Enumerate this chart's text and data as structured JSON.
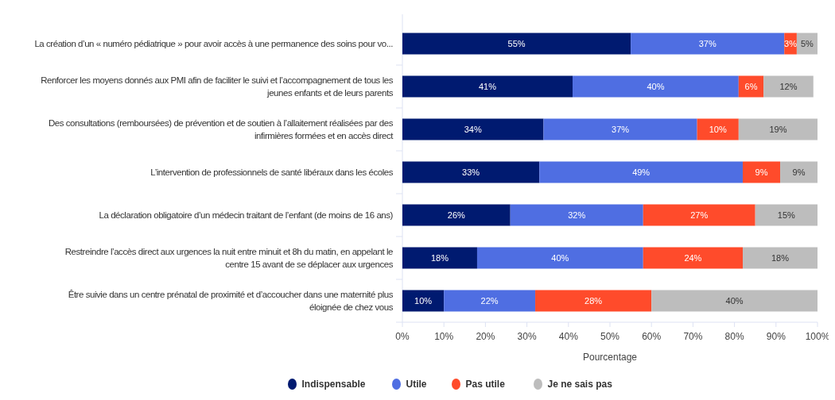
{
  "chart_data": {
    "type": "bar",
    "orientation": "horizontal",
    "stacked": true,
    "xlabel": "Pourcentage",
    "categories": [
      "La création d’un « numéro pédiatrique » pour avoir accès à une permanence des soins pour vo...",
      "Renforcer les moyens donnés aux PMI afin de faciliter le suivi et l’accompagnement de tous les jeunes enfants et de leurs parents",
      "Des consultations (remboursées) de prévention et de soutien à l’allaitement réalisées par des infirmières formées et en accès direct",
      "L’intervention de professionnels de santé libéraux dans les écoles",
      "La déclaration obligatoire d’un médecin traitant de l’enfant (de moins de 16 ans)",
      "Restreindre l’accès direct aux urgences la nuit entre minuit et 8h du matin, en appelant le centre 15 avant de se déplacer aux urgences",
      "Être suivie dans un centre prénatal de proximité et d’accoucher dans une maternité plus éloignée de chez vous"
    ],
    "series": [
      {
        "name": "Indispensable",
        "color": "#001a70",
        "values": [
          55,
          41,
          34,
          33,
          26,
          18,
          10
        ],
        "value_labels": [
          "55%",
          "41%",
          "34%",
          "33%",
          "26%",
          "18%",
          "10%"
        ]
      },
      {
        "name": "Utile",
        "color": "#4f6ee2",
        "values": [
          37,
          40,
          37,
          49,
          32,
          40,
          22
        ],
        "value_labels": [
          "37%",
          "40%",
          "37%",
          "49%",
          "32%",
          "40%",
          "22%"
        ]
      },
      {
        "name": "Pas utile",
        "color": "#ff4b2b",
        "values": [
          3,
          6,
          10,
          9,
          27,
          24,
          28
        ],
        "value_labels": [
          "3%",
          "6%",
          "10%",
          "9%",
          "27%",
          "24%",
          "28%"
        ]
      },
      {
        "name": "Je ne sais pas",
        "color": "#bdbdbd",
        "values": [
          5,
          12,
          19,
          9,
          15,
          18,
          40
        ],
        "value_labels": [
          "5%",
          "12%",
          "19%",
          "9%",
          "15%",
          "18%",
          "40%"
        ]
      }
    ],
    "xlim": [
      0,
      100
    ],
    "xticks": [
      {
        "value": 0,
        "label": "0%"
      },
      {
        "value": 10,
        "label": "10%"
      },
      {
        "value": 20,
        "label": "20%"
      },
      {
        "value": 30,
        "label": "30%"
      },
      {
        "value": 40,
        "label": "40%"
      },
      {
        "value": 50,
        "label": "50%"
      },
      {
        "value": 60,
        "label": "60%"
      },
      {
        "value": 70,
        "label": "70%"
      },
      {
        "value": 80,
        "label": "80%"
      },
      {
        "value": 90,
        "label": "90%"
      },
      {
        "value": 100,
        "label": "100%"
      }
    ],
    "legend": "bottom",
    "grid": false
  }
}
